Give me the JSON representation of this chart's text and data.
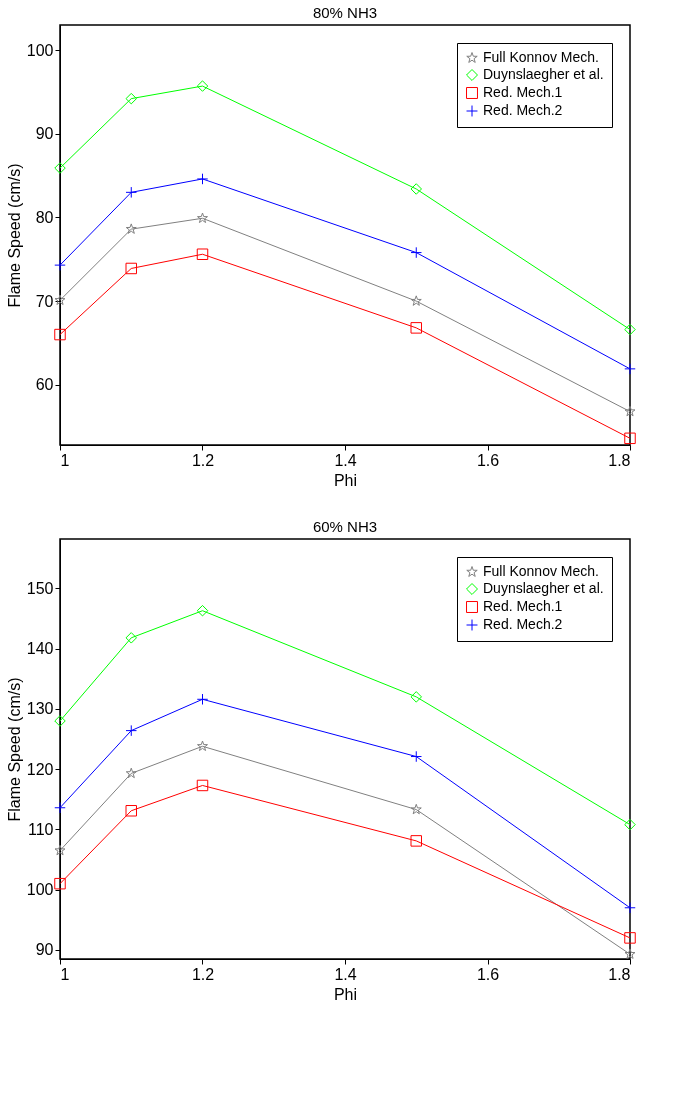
{
  "chart_data": [
    {
      "type": "line",
      "title": "80% NH3",
      "xlabel": "Phi",
      "ylabel": "Flame Speed (cm/s)",
      "x": [
        1,
        1.1,
        1.2,
        1.5,
        1.8
      ],
      "xlim": [
        1,
        1.8
      ],
      "xticks": [
        1,
        1.2,
        1.4,
        1.6,
        1.8
      ],
      "ylim": [
        52.8,
        103
      ],
      "yticks": [
        60,
        70,
        80,
        90,
        100
      ],
      "grid": false,
      "legend": "top right",
      "series": [
        {
          "name": "Full Konnov Mech.",
          "color": "#808080",
          "marker": "star",
          "values": [
            70.1,
            78.6,
            79.9,
            70.0,
            56.8
          ]
        },
        {
          "name": "Duynslaegher et al.",
          "color": "#00ff00",
          "marker": "diamond",
          "values": [
            85.9,
            94.2,
            95.7,
            83.4,
            66.6
          ]
        },
        {
          "name": "Red. Mech.1",
          "color": "#ff0000",
          "marker": "square",
          "values": [
            66.0,
            73.9,
            75.6,
            66.8,
            53.6
          ]
        },
        {
          "name": "Red. Mech.2",
          "color": "#0000ff",
          "marker": "cross",
          "values": [
            74.3,
            83.0,
            84.6,
            75.8,
            61.9
          ]
        }
      ]
    },
    {
      "type": "line",
      "title": "60% NH3",
      "xlabel": "Phi",
      "ylabel": "Flame Speed (cm/s)",
      "x": [
        1,
        1.1,
        1.2,
        1.5,
        1.8
      ],
      "xlim": [
        1,
        1.8
      ],
      "xticks": [
        1,
        1.2,
        1.4,
        1.6,
        1.8
      ],
      "ylim": [
        88.5,
        158.2
      ],
      "yticks": [
        90,
        100,
        110,
        120,
        130,
        140,
        150
      ],
      "grid": false,
      "legend": "top right",
      "series": [
        {
          "name": "Full Konnov Mech.",
          "color": "#808080",
          "marker": "star",
          "values": [
            106.5,
            119.3,
            123.8,
            113.3,
            89.3
          ]
        },
        {
          "name": "Duynslaegher et al.",
          "color": "#00ff00",
          "marker": "diamond",
          "values": [
            128.0,
            141.8,
            146.3,
            132.0,
            110.8
          ]
        },
        {
          "name": "Red. Mech.1",
          "color": "#ff0000",
          "marker": "square",
          "values": [
            101.0,
            113.1,
            117.3,
            108.1,
            92.0
          ]
        },
        {
          "name": "Red. Mech.2",
          "color": "#0000ff",
          "marker": "cross",
          "values": [
            113.6,
            126.4,
            131.6,
            122.1,
            97.0
          ]
        }
      ]
    }
  ]
}
